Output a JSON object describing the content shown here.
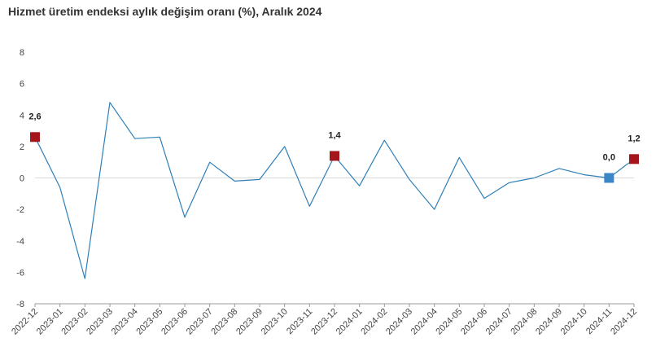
{
  "title": "Hizmet üretim endeksi aylık değişim oranı (%), Aralık 2024",
  "colors": {
    "line": "#2e7fb8",
    "highlight_marker": "#a5161c",
    "last_month_marker": "#3a86c8",
    "axis": "#999999",
    "zero_line": "#d9d9d9"
  },
  "chart_data": {
    "type": "line",
    "title": "Hizmet üretim endeksi aylık değişim oranı (%), Aralık 2024",
    "xlabel": "",
    "ylabel": "",
    "ylim": [
      -8,
      8
    ],
    "yticks": [
      "8",
      "6",
      "4",
      "2",
      "0",
      "-2",
      "-4",
      "-6",
      "-8"
    ],
    "grid": false,
    "categories": [
      "2022-12",
      "2023-01",
      "2023-02",
      "2023-03",
      "2023-04",
      "2023-05",
      "2023-06",
      "2023-07",
      "2023-08",
      "2023-09",
      "2023-10",
      "2023-11",
      "2023-12",
      "2024-01",
      "2024-02",
      "2024-03",
      "2024-04",
      "2024-05",
      "2024-06",
      "2024-07",
      "2024-08",
      "2024-09",
      "2024-10",
      "2024-11",
      "2024-12"
    ],
    "values": [
      2.6,
      -0.6,
      -6.4,
      4.8,
      2.5,
      2.6,
      -2.5,
      1.0,
      -0.2,
      -0.1,
      2.0,
      -1.8,
      1.4,
      -0.5,
      2.4,
      -0.1,
      -2.0,
      1.3,
      -1.3,
      -0.3,
      0.0,
      0.6,
      0.2,
      0.0,
      1.2
    ],
    "highlighted": [
      {
        "category": "2022-12",
        "value": 2.6,
        "label": "2,6",
        "marker": "red"
      },
      {
        "category": "2023-12",
        "value": 1.4,
        "label": "1,4",
        "marker": "red"
      },
      {
        "category": "2024-11",
        "value": 0.0,
        "label": "0,0",
        "marker": "blue"
      },
      {
        "category": "2024-12",
        "value": 1.2,
        "label": "1,2",
        "marker": "red"
      }
    ]
  }
}
